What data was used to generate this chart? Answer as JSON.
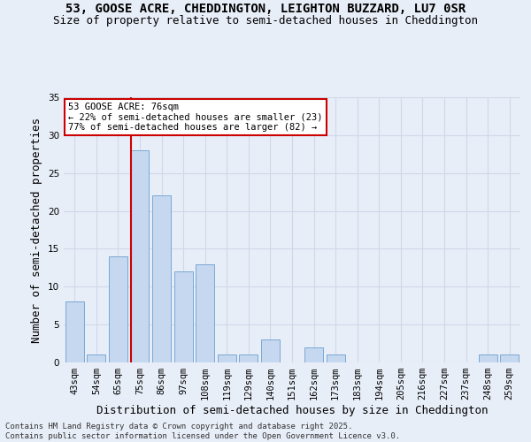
{
  "title_line1": "53, GOOSE ACRE, CHEDDINGTON, LEIGHTON BUZZARD, LU7 0SR",
  "title_line2": "Size of property relative to semi-detached houses in Cheddington",
  "xlabel": "Distribution of semi-detached houses by size in Cheddington",
  "ylabel": "Number of semi-detached properties",
  "categories": [
    "43sqm",
    "54sqm",
    "65sqm",
    "75sqm",
    "86sqm",
    "97sqm",
    "108sqm",
    "119sqm",
    "129sqm",
    "140sqm",
    "151sqm",
    "162sqm",
    "173sqm",
    "183sqm",
    "194sqm",
    "205sqm",
    "216sqm",
    "227sqm",
    "237sqm",
    "248sqm",
    "259sqm"
  ],
  "values": [
    8,
    1,
    14,
    28,
    22,
    12,
    13,
    1,
    1,
    3,
    0,
    2,
    1,
    0,
    0,
    0,
    0,
    0,
    0,
    1,
    1
  ],
  "bar_color": "#c5d8f0",
  "bar_edge_color": "#7aa8d4",
  "highlight_line_index": 3,
  "highlight_label": "53 GOOSE ACRE: 76sqm",
  "pct_smaller": "22% of semi-detached houses are smaller (23)",
  "pct_larger": "77% of semi-detached houses are larger (82)",
  "annotation_box_color": "#ffffff",
  "annotation_box_edge": "#cc0000",
  "ylim": [
    0,
    35
  ],
  "yticks": [
    0,
    5,
    10,
    15,
    20,
    25,
    30,
    35
  ],
  "grid_color": "#d0d8e8",
  "bg_color": "#e8eef8",
  "footer": "Contains HM Land Registry data © Crown copyright and database right 2025.\nContains public sector information licensed under the Open Government Licence v3.0.",
  "title_fontsize": 10,
  "subtitle_fontsize": 9,
  "axis_label_fontsize": 9,
  "tick_fontsize": 7.5,
  "footer_fontsize": 6.5
}
